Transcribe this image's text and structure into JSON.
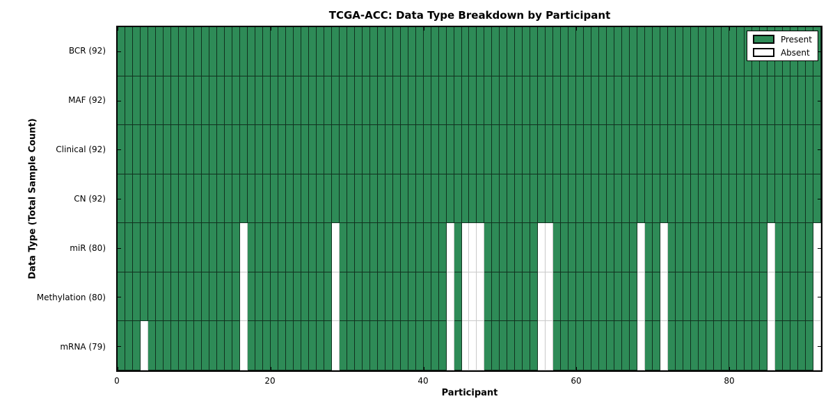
{
  "chart_data": {
    "type": "heatmap",
    "title": "TCGA-ACC: Data Type Breakdown by Participant",
    "xlabel": "Participant",
    "ylabel": "Data Type (Total Sample Count)",
    "n_participants": 92,
    "x_ticks": [
      0,
      20,
      40,
      60,
      80
    ],
    "grid": "off",
    "legend_position": "upper right",
    "colors": {
      "present": "#2e8b57",
      "absent": "#ffffff"
    },
    "legend": [
      {
        "label": "Present",
        "state": "present"
      },
      {
        "label": "Absent",
        "state": "absent"
      }
    ],
    "rows": [
      {
        "label": "BCR (92)",
        "name": "BCR",
        "total": 92,
        "absent": []
      },
      {
        "label": "MAF (92)",
        "name": "MAF",
        "total": 92,
        "absent": []
      },
      {
        "label": "Clinical (92)",
        "name": "Clinical",
        "total": 92,
        "absent": []
      },
      {
        "label": "CN (92)",
        "name": "CN",
        "total": 92,
        "absent": []
      },
      {
        "label": "miR (80)",
        "name": "miR",
        "total": 80,
        "absent": [
          16,
          28,
          43,
          45,
          46,
          47,
          55,
          56,
          68,
          71,
          85,
          91
        ]
      },
      {
        "label": "Methylation (80)",
        "name": "Methylation",
        "total": 80,
        "absent": [
          16,
          28,
          43,
          45,
          46,
          47,
          55,
          56,
          68,
          71,
          85,
          91
        ]
      },
      {
        "label": "mRNA (79)",
        "name": "mRNA",
        "total": 79,
        "absent": [
          3,
          16,
          28,
          43,
          45,
          46,
          47,
          55,
          56,
          68,
          71,
          85,
          91
        ]
      }
    ]
  }
}
